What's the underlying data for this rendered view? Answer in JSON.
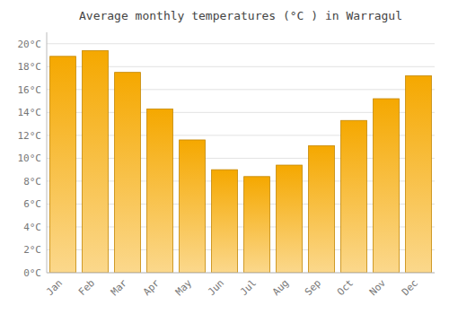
{
  "chart_data": {
    "type": "bar",
    "title": "Average monthly temperatures (°C ) in Warragul",
    "categories": [
      "Jan",
      "Feb",
      "Mar",
      "Apr",
      "May",
      "Jun",
      "Jul",
      "Aug",
      "Sep",
      "Oct",
      "Nov",
      "Dec"
    ],
    "values": [
      18.9,
      19.4,
      17.5,
      14.3,
      11.6,
      9.0,
      8.4,
      9.4,
      11.1,
      13.3,
      15.2,
      17.2
    ],
    "color": "#F5A800",
    "ylim": [
      0,
      21
    ],
    "yticks": [
      {
        "value": 0,
        "label": "0°C"
      },
      {
        "value": 2,
        "label": "2°C"
      },
      {
        "value": 4,
        "label": "4°C"
      },
      {
        "value": 6,
        "label": "6°C"
      },
      {
        "value": 8,
        "label": "8°C"
      },
      {
        "value": 10,
        "label": "10°C"
      },
      {
        "value": 12,
        "label": "12°C"
      },
      {
        "value": 14,
        "label": "14°C"
      },
      {
        "value": 16,
        "label": "16°C"
      },
      {
        "value": 18,
        "label": "18°C"
      },
      {
        "value": 20,
        "label": "20°C"
      }
    ],
    "grid": true
  }
}
